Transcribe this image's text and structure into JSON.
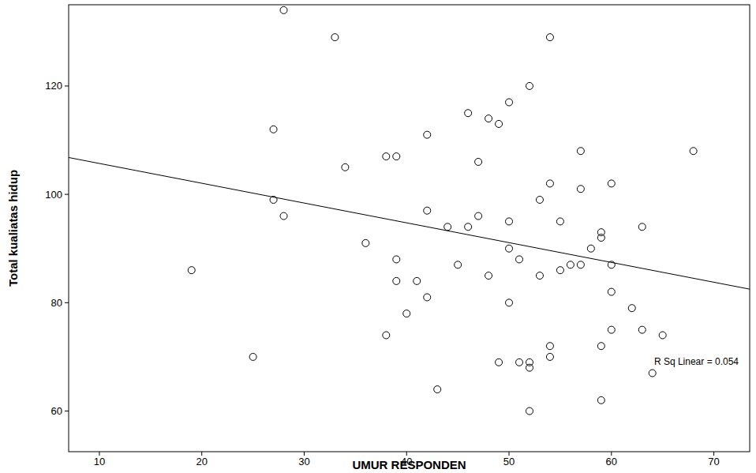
{
  "chart_data": {
    "type": "scatter",
    "x_label": "UMUR RESPONDEN",
    "y_label": "Total kualiatas hidup",
    "annotation": "R Sq Linear = 0.054",
    "x": [
      28,
      33,
      54,
      52,
      50,
      27,
      46,
      48,
      49,
      42,
      34,
      38,
      39,
      47,
      57,
      68,
      54,
      57,
      60,
      27,
      28,
      53,
      42,
      47,
      44,
      46,
      50,
      55,
      59,
      59,
      63,
      36,
      39,
      51,
      50,
      58,
      56,
      57,
      60,
      55,
      45,
      39,
      41,
      48,
      53,
      19,
      42,
      50,
      60,
      62,
      40,
      38,
      60,
      63,
      65,
      54,
      59,
      54,
      25,
      49,
      51,
      52,
      52,
      64,
      43,
      52,
      59
    ],
    "values": [
      134,
      129,
      129,
      120,
      117,
      112,
      115,
      114,
      113,
      111,
      105,
      107,
      107,
      106,
      108,
      108,
      102,
      101,
      102,
      99,
      96,
      99,
      97,
      96,
      94,
      94,
      95,
      95,
      93,
      92,
      94,
      91,
      88,
      88,
      90,
      90,
      87,
      87,
      87,
      86,
      87,
      84,
      84,
      85,
      85,
      86,
      81,
      80,
      82,
      79,
      78,
      74,
      75,
      75,
      74,
      72,
      72,
      70,
      70,
      69,
      69,
      69,
      68,
      67,
      64,
      60,
      62
    ],
    "trend_line": {
      "x": [
        7,
        73.5
      ],
      "y": [
        106.8,
        82.5
      ]
    },
    "color": "#000000",
    "marker": "circle",
    "xlim": [
      7,
      73.5
    ],
    "ylim": [
      52.5,
      135
    ],
    "xticks": [
      10,
      20,
      30,
      40,
      50,
      60,
      70
    ],
    "yticks": [
      60,
      80,
      100,
      120
    ],
    "grid": false
  }
}
